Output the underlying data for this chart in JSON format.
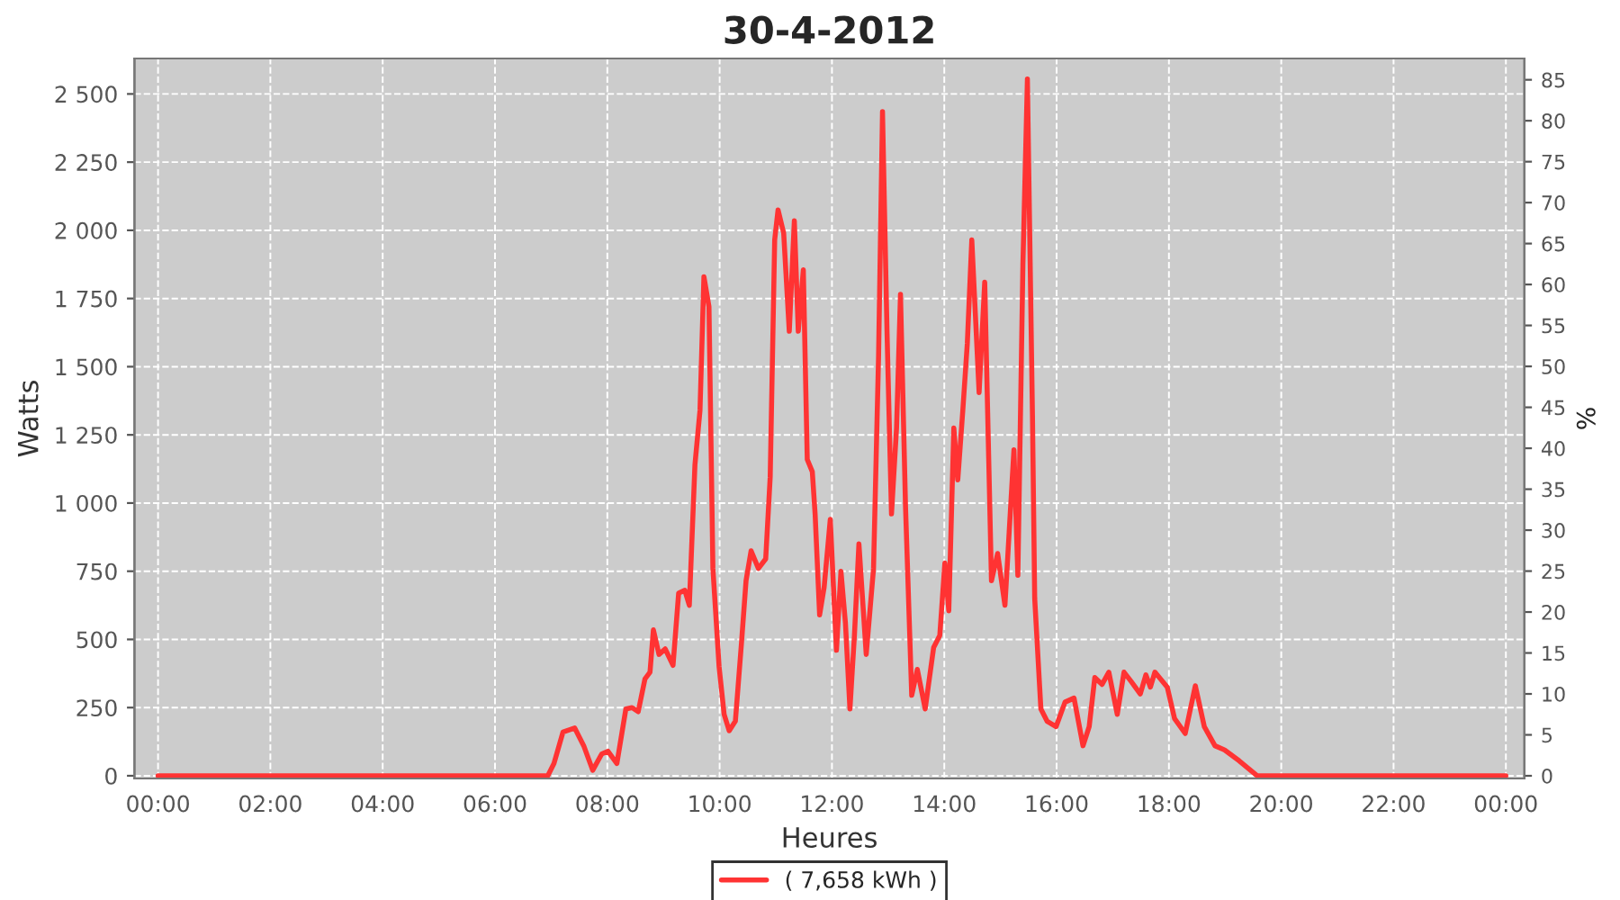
{
  "chart_data": {
    "type": "line",
    "title": "30-4-2012",
    "xlabel": "Heures",
    "ylabel": "Watts",
    "y2label": "%",
    "xlim": [
      -0.42,
      24.33
    ],
    "ylim": [
      -10,
      2630
    ],
    "y2lim": [
      -0.33,
      87.6
    ],
    "xticks": [
      {
        "value": 0,
        "label": "00:00"
      },
      {
        "value": 2,
        "label": "02:00"
      },
      {
        "value": 4,
        "label": "04:00"
      },
      {
        "value": 6,
        "label": "06:00"
      },
      {
        "value": 8,
        "label": "08:00"
      },
      {
        "value": 10,
        "label": "10:00"
      },
      {
        "value": 12,
        "label": "12:00"
      },
      {
        "value": 14,
        "label": "14:00"
      },
      {
        "value": 16,
        "label": "16:00"
      },
      {
        "value": 18,
        "label": "18:00"
      },
      {
        "value": 20,
        "label": "20:00"
      },
      {
        "value": 22,
        "label": "22:00"
      },
      {
        "value": 24,
        "label": "00:00"
      }
    ],
    "yticks": [
      0,
      250,
      500,
      750,
      {
        "value": 1000,
        "label": "1 000"
      },
      {
        "value": 1250,
        "label": "1 250"
      },
      {
        "value": 1500,
        "label": "1 500"
      },
      {
        "value": 1750,
        "label": "1 750"
      },
      {
        "value": 2000,
        "label": "2 000"
      },
      {
        "value": 2250,
        "label": "2 250"
      },
      {
        "value": 2500,
        "label": "2 500"
      }
    ],
    "y2ticks": [
      0,
      5,
      10,
      15,
      20,
      25,
      30,
      35,
      40,
      45,
      50,
      55,
      60,
      65,
      70,
      75,
      80,
      85
    ],
    "grid": true,
    "legend": "bottom",
    "series": [
      {
        "name": "( 7,658 kWh )",
        "color": "#ff3333",
        "x": [
          0,
          6.94,
          7.05,
          7.21,
          7.42,
          7.58,
          7.74,
          7.9,
          8.01,
          8.17,
          8.33,
          8.44,
          8.55,
          8.67,
          8.76,
          8.82,
          8.92,
          9.03,
          9.17,
          9.27,
          9.38,
          9.46,
          9.56,
          9.65,
          9.72,
          9.81,
          9.88,
          9.99,
          10.08,
          10.17,
          10.28,
          10.39,
          10.47,
          10.56,
          10.69,
          10.82,
          10.9,
          10.98,
          11.04,
          11.14,
          11.24,
          11.33,
          11.4,
          11.49,
          11.56,
          11.65,
          11.7,
          11.78,
          11.86,
          11.97,
          12.08,
          12.16,
          12.24,
          12.32,
          12.4,
          12.48,
          12.61,
          12.74,
          12.83,
          12.9,
          12.98,
          13.06,
          13.15,
          13.22,
          13.31,
          13.42,
          13.52,
          13.66,
          13.81,
          13.92,
          14.01,
          14.08,
          14.17,
          14.24,
          14.33,
          14.41,
          14.49,
          14.62,
          14.72,
          14.84,
          14.95,
          15.08,
          15.24,
          15.31,
          15.4,
          15.48,
          15.57,
          15.61,
          15.72,
          15.83,
          15.99,
          16.15,
          16.31,
          16.47,
          16.58,
          16.68,
          16.81,
          16.93,
          17.08,
          17.2,
          17.33,
          17.49,
          17.59,
          17.67,
          17.75,
          17.97,
          18.1,
          18.29,
          18.47,
          18.63,
          18.82,
          18.99,
          19.25,
          19.57,
          24
        ],
        "values": [
          0,
          0,
          45,
          160,
          175,
          110,
          20,
          80,
          90,
          45,
          245,
          250,
          235,
          355,
          380,
          535,
          445,
          465,
          405,
          670,
          680,
          625,
          1140,
          1340,
          1830,
          1720,
          760,
          400,
          225,
          165,
          200,
          490,
          715,
          825,
          760,
          795,
          1095,
          1965,
          2075,
          1990,
          1630,
          2035,
          1630,
          1855,
          1160,
          1115,
          960,
          590,
          690,
          940,
          460,
          750,
          560,
          245,
          515,
          850,
          445,
          760,
          1540,
          2435,
          1630,
          960,
          1275,
          1765,
          985,
          295,
          390,
          245,
          470,
          515,
          780,
          605,
          1275,
          1085,
          1340,
          1585,
          1965,
          1405,
          1810,
          715,
          815,
          625,
          1195,
          735,
          1875,
          2555,
          1320,
          650,
          245,
          200,
          180,
          270,
          285,
          110,
          180,
          360,
          335,
          380,
          225,
          380,
          345,
          300,
          370,
          325,
          380,
          325,
          210,
          155,
          330,
          180,
          110,
          95,
          55,
          0,
          0
        ]
      }
    ]
  }
}
